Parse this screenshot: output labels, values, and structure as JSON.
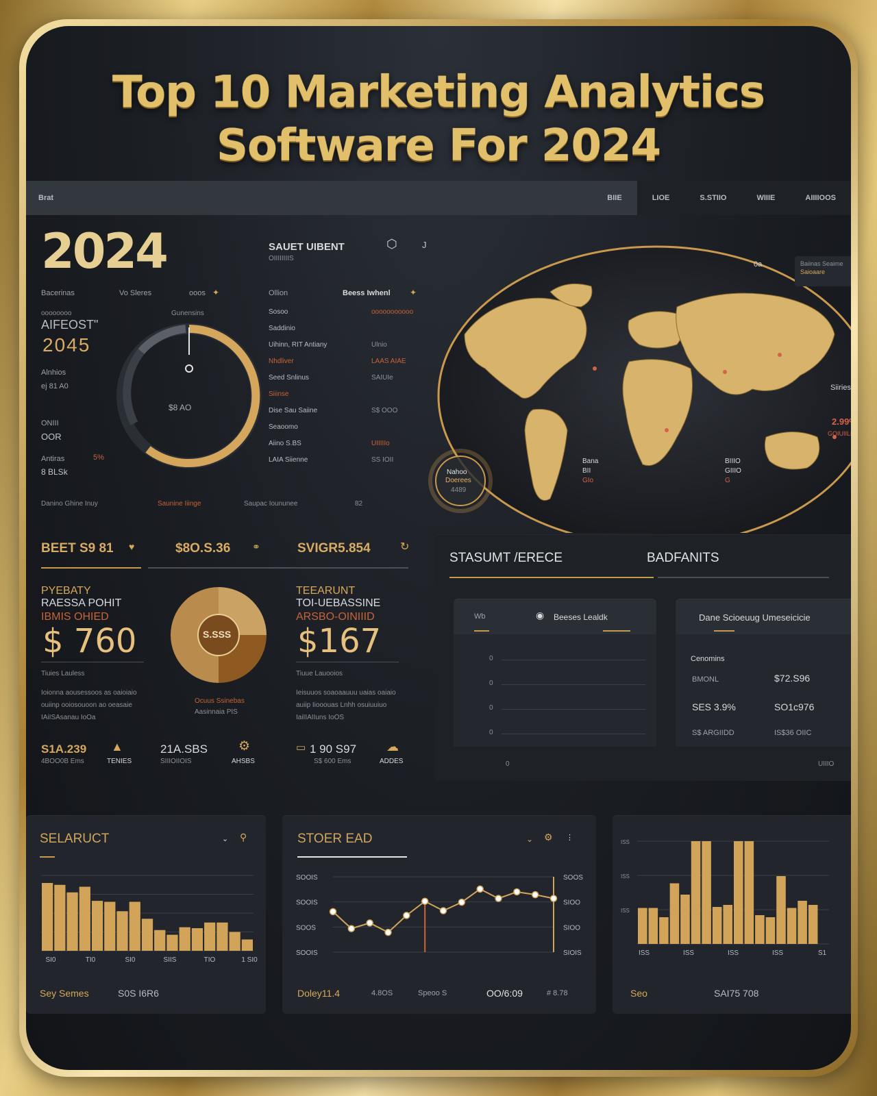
{
  "title": {
    "line1": "Top 10 Marketing Analytics",
    "line2": "Software For 2024"
  },
  "navbar": {
    "brand": "Brat",
    "items": [
      "BIIE",
      "LIOE",
      "S.STIIO",
      "WIIIE",
      "AIIIIOOS"
    ]
  },
  "left_panel": {
    "year": "2024",
    "filters": [
      "Bacerinas",
      "Vo Sleres",
      "ooos"
    ],
    "metric_label": "AIFEOST\"",
    "metric_value": "2045",
    "metric_sub_label": "Alnhios",
    "metric_sub_value": "ej 81 A0",
    "stat1_label": "ONIII",
    "stat1_value": "OOR",
    "stat2_label": "Antiras",
    "stat2_value": "8 BLSk",
    "stat2_pct": "5%",
    "gauge_top_label": "Gunensins",
    "gauge_center": "$8 AO",
    "footer": [
      "Danino Ghine Inuy",
      "Saunine Iiinge",
      "Saupac Ioununee",
      "82"
    ]
  },
  "mid_panel": {
    "header": "SAUET UIBENT",
    "header_sub": "OIIIIIIIIS",
    "search_label": "Ollion",
    "filter_label": "Beess Iwhenl",
    "rows": [
      {
        "label": "Sosoo",
        "value": "ooooooooooo"
      },
      {
        "label": "Saddinio",
        "value": ""
      },
      {
        "label": "Uihinn, RIT Antiany",
        "value": "Ulnio"
      },
      {
        "label": "Nhdliver",
        "value": "LAAS AIAE"
      },
      {
        "label": "Seed Snlinus",
        "value": "SAIUIe"
      },
      {
        "label": "Siiinse",
        "value": ""
      },
      {
        "label": "Dise Sau Saiine",
        "value": "S$ OOO"
      },
      {
        "label": "Seaoomo",
        "value": ""
      },
      {
        "label": "Aiino S.BS",
        "value": "UIIIIIo"
      },
      {
        "label": "LAIA Siienne",
        "value": "SS IOII"
      }
    ]
  },
  "map_panel": {
    "top_icon_label": "0a",
    "dropdown_line1": "Baiinas Seaime",
    "dropdown_line2": "Saioaare",
    "legend_label": "Siiries",
    "stat_pct": "2.99%",
    "stat_sub": "GOIUIILE",
    "circle_line1": "Nahoo",
    "circle_line2": "Doerees",
    "circle_line3": "4489",
    "pin1": [
      "Bana",
      "BII",
      "GIo"
    ],
    "pin2": [
      "BIIIO",
      "GIIIO",
      "G"
    ]
  },
  "kpis": {
    "k1": "BEET S9 81",
    "k2": "$8O.S.36",
    "k3": "SVIGR5.854"
  },
  "left_card": {
    "label1": "PYEBATY",
    "label2": "RAESSA POHIT",
    "label3": "IBMIS OHIED",
    "value": "$ 760",
    "sub": "Tiuies  Lauless",
    "desc": [
      "Ioionna aousessoos as oaioiaio",
      "ouiinp ooiosouoon ao oeasaie",
      "IAiISAsanau IoOa"
    ]
  },
  "donut": {
    "center": "S.SSS",
    "label1": "Ocuus Ssinebas",
    "label2": "Aasinnaia PIS",
    "segments": [
      {
        "name": "a",
        "value": 25,
        "color": "#c9a264"
      },
      {
        "name": "b",
        "value": 25,
        "color": "#8f5a22"
      },
      {
        "name": "c",
        "value": 50,
        "color": "#b98c4d"
      }
    ]
  },
  "right_card": {
    "label1": "TEEARUNT",
    "label2": "TOI-UEBASSINE",
    "label3": "ARSBO-OINIIID",
    "value": "$167",
    "sub": "Tiuue  Lauooios",
    "desc": [
      "Ieisuuos soaoaauuu uaias oaiaio",
      "auiip Iiooouas Lnhh osuiuuiuo",
      "IaiIIAIIuns IoOS"
    ]
  },
  "bottom_stats": [
    {
      "value": "S1A.239",
      "label": "4BOO0B Ems",
      "icon": "chart-icon",
      "icon_label": "TENIES"
    },
    {
      "value": "21A.SBS",
      "label": "SIIIOIIOIS",
      "icon": "gear-icon",
      "icon_label": "AHSBS"
    },
    {
      "value": "1 90 S97",
      "label": "S$ 600 Ems",
      "icon": "cloud-icon",
      "icon_label": "ADDES"
    }
  ],
  "right_panel": {
    "tab1": "STASUMT /ERECE",
    "tab2": "BADFANITS",
    "chart_card": {
      "tab1": "Wb",
      "tab2": "Beeses Lealdk",
      "y_labels": [
        "0",
        "0",
        "0",
        "0"
      ],
      "foot_left": "0",
      "foot_right": "UIIIO"
    },
    "list_card": {
      "header": "Dane Scioeuug Umeseicicie",
      "title": "Cenomins",
      "rows": [
        {
          "label": "BMONL",
          "value": "$72.S96"
        },
        {
          "label": "SES 3.9%",
          "value": "SO1c976"
        },
        {
          "label": "S$ ARGIIDD",
          "value": "IS$36 OIIC"
        }
      ]
    }
  },
  "chart_panels": {
    "bar1": {
      "title": "SELARUCT",
      "foot_left": "Sey Semes",
      "foot_right": "S0S I6R6"
    },
    "line1": {
      "title": "STOER EAD",
      "foot": [
        "Doley11.4",
        "4.8OS",
        "Speoo S",
        "OO/6:09",
        "# 8.78"
      ]
    },
    "bar2": {
      "title": "",
      "foot_left": "Seo",
      "foot_right": "SAI75 708"
    }
  },
  "chart_data": [
    {
      "type": "bar",
      "categories": [
        "1",
        "2",
        "3",
        "4",
        "5",
        "6",
        "7",
        "8",
        "9",
        "10",
        "11",
        "12",
        "13",
        "14",
        "15",
        "16",
        "17"
      ],
      "values": [
        7.2,
        7.0,
        6.2,
        6.8,
        5.3,
        5.2,
        4.2,
        5.2,
        3.4,
        2.2,
        1.7,
        2.5,
        2.4,
        3.0,
        3.0,
        2.0,
        1.2
      ],
      "tick_labels": [
        "SI0",
        "TI0",
        "SI0",
        "SIIS",
        "TIO",
        "1 SI0"
      ],
      "ylim": [
        0,
        8
      ],
      "grid": true
    },
    {
      "type": "line",
      "x": [
        0,
        1,
        2,
        3,
        4,
        5,
        6,
        7,
        8,
        9,
        10,
        11,
        12
      ],
      "values": [
        2.15,
        1.25,
        1.55,
        1.05,
        1.95,
        2.7,
        2.2,
        2.65,
        3.35,
        2.85,
        3.2,
        3.05,
        2.85
      ],
      "y_left_labels": [
        "SOOIS",
        "SOOIS",
        "SOOS",
        "SOOIS"
      ],
      "y_right_labels": [
        "SOOS",
        "SIOO",
        "SIOO",
        "SIOIS"
      ],
      "highlight_index": 5,
      "ylim": [
        0,
        4
      ],
      "grid": true
    },
    {
      "type": "bar",
      "categories": [
        "1",
        "2",
        "3",
        "4",
        "5",
        "6",
        "7",
        "8",
        "9",
        "10",
        "11",
        "12",
        "13",
        "14",
        "15",
        "16",
        "17",
        "18"
      ],
      "values": [
        3.5,
        3.5,
        2.6,
        5.9,
        4.8,
        10.0,
        10.0,
        3.6,
        3.8,
        10.0,
        10.0,
        2.8,
        2.6,
        6.6,
        3.5,
        4.2,
        3.8,
        0
      ],
      "tick_labels": [
        "ISS",
        "ISS",
        "ISS",
        "ISS",
        "S1"
      ],
      "y_labels": [
        "ISS",
        "ISS",
        "ISS"
      ],
      "ylim": [
        0,
        10
      ],
      "grid": true
    }
  ],
  "colors": {
    "gold": "#d6a85a",
    "gold_light": "#e7cf94",
    "accent_orange": "#c7643a",
    "panel": "#22262c",
    "background": "#16191e"
  }
}
